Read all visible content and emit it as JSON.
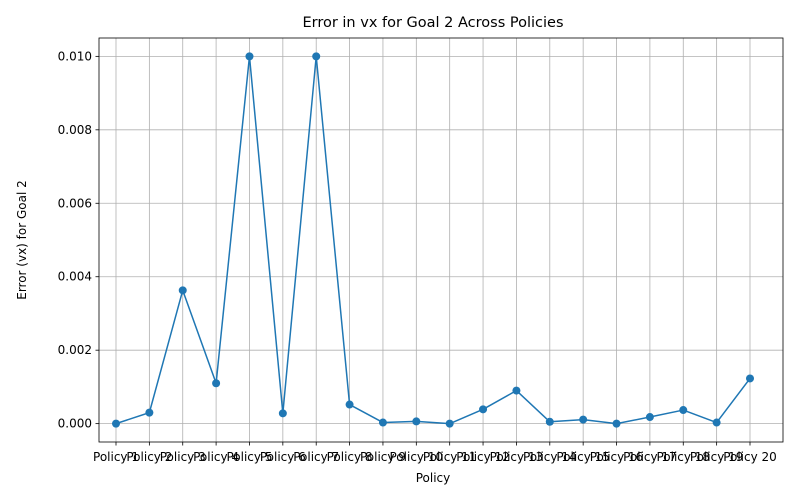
{
  "chart_data": {
    "type": "line",
    "title": "Error in vx for Goal 2 Across Policies",
    "xlabel": "Policy",
    "ylabel": "Error (vx) for Goal 2",
    "categories": [
      "Policy 1",
      "Policy 2",
      "Policy 3",
      "Policy 4",
      "Policy 5",
      "Policy 6",
      "Policy 7",
      "Policy 8",
      "Policy 9",
      "Policy 10",
      "Policy 11",
      "Policy 12",
      "Policy 13",
      "Policy 14",
      "Policy 15",
      "Policy 16",
      "Policy 17",
      "Policy 18",
      "Policy 19",
      "Policy 20"
    ],
    "series": [
      {
        "values": [
          0.0,
          0.0003,
          0.00363,
          0.0011,
          0.01,
          0.00028,
          0.01,
          0.00052,
          3e-05,
          6e-05,
          0.0,
          0.00039,
          0.0009,
          5e-05,
          0.00011,
          0.0,
          0.00018,
          0.00037,
          3e-05,
          0.00123
        ],
        "color": "#1f77b4"
      }
    ],
    "ylim": [
      -0.0005,
      0.0105
    ],
    "yticks": [
      "0.000",
      "0.002",
      "0.004",
      "0.006",
      "0.008",
      "0.010"
    ],
    "ytick_values": [
      0.0,
      0.002,
      0.004,
      0.006,
      0.008,
      0.01
    ],
    "grid": true
  }
}
